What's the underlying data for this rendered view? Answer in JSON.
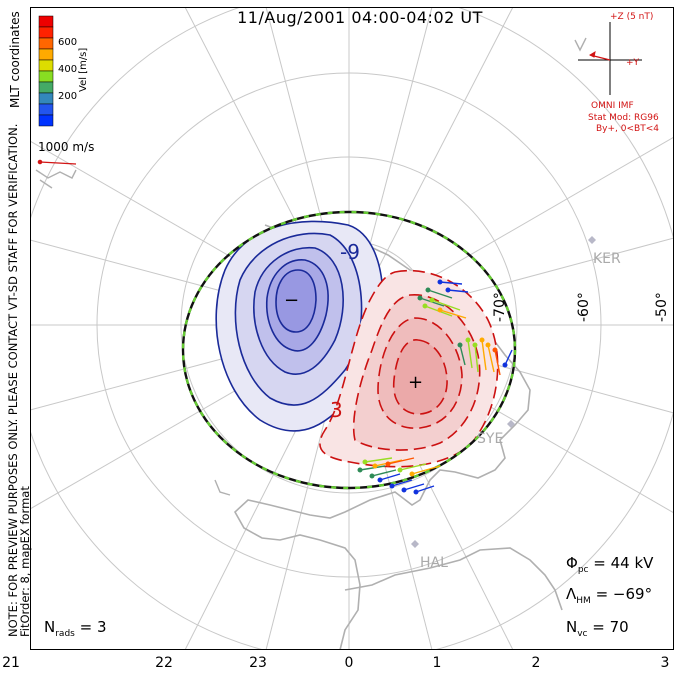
{
  "title": "11/Aug/2001 04:00-04:02 UT",
  "coordinates_label": "MLT coordinates",
  "colorbar": {
    "label": "Vel [m/s]",
    "ticks": [
      "600",
      "400",
      "200"
    ],
    "colors": [
      "#0033ff",
      "#2255ee",
      "#3388bb",
      "#44aa66",
      "#88dd22",
      "#dddd00",
      "#ffaa00",
      "#ff6600",
      "#ff2200",
      "#ee0000"
    ]
  },
  "scale_vector_label": "1000 m/s",
  "disclaimer_1": "NOTE: FOR PREVIEW PURPOSES ONLY. PLEASE CONTACT VT-SD STAFF FOR VERIFICATION.",
  "disclaimer_2": "FitOrder: 8, mapEX format",
  "imf": {
    "z_label": "+Z (5 nT)",
    "y_label": "+Y",
    "source": "OMNI IMF",
    "stat_mod": "Stat Mod: RG96",
    "condition": "By+, 0<BT<4"
  },
  "latitudes": [
    "-50°",
    "-60°",
    "-70°"
  ],
  "stations": [
    "KER",
    "SYE",
    "HAL"
  ],
  "contour_labels": [
    "-9",
    "3"
  ],
  "markers": {
    "min": "−",
    "max": "+"
  },
  "stats": {
    "phi_pc_symbol": "Φ",
    "phi_pc_sub": "pc",
    "phi_pc_value": " = 44 kV",
    "lambda_hm_symbol": "Λ",
    "lambda_hm_sub": "HM",
    "lambda_hm_value": " = −69°",
    "n_vc_symbol": "N",
    "n_vc_sub": "vc",
    "n_vc_value": " = 70",
    "n_rads_symbol": "N",
    "n_rads_sub": "rads",
    "n_rads_value": " = 3"
  },
  "mlt_ticks": [
    "21",
    "22",
    "23",
    "0",
    "1",
    "2",
    "3"
  ],
  "colors": {
    "positive": "#cc1111",
    "negative": "#1a2a99",
    "boundary": "#66cc33",
    "grid": "#c8c8c8",
    "land": "#b0b0b0"
  }
}
